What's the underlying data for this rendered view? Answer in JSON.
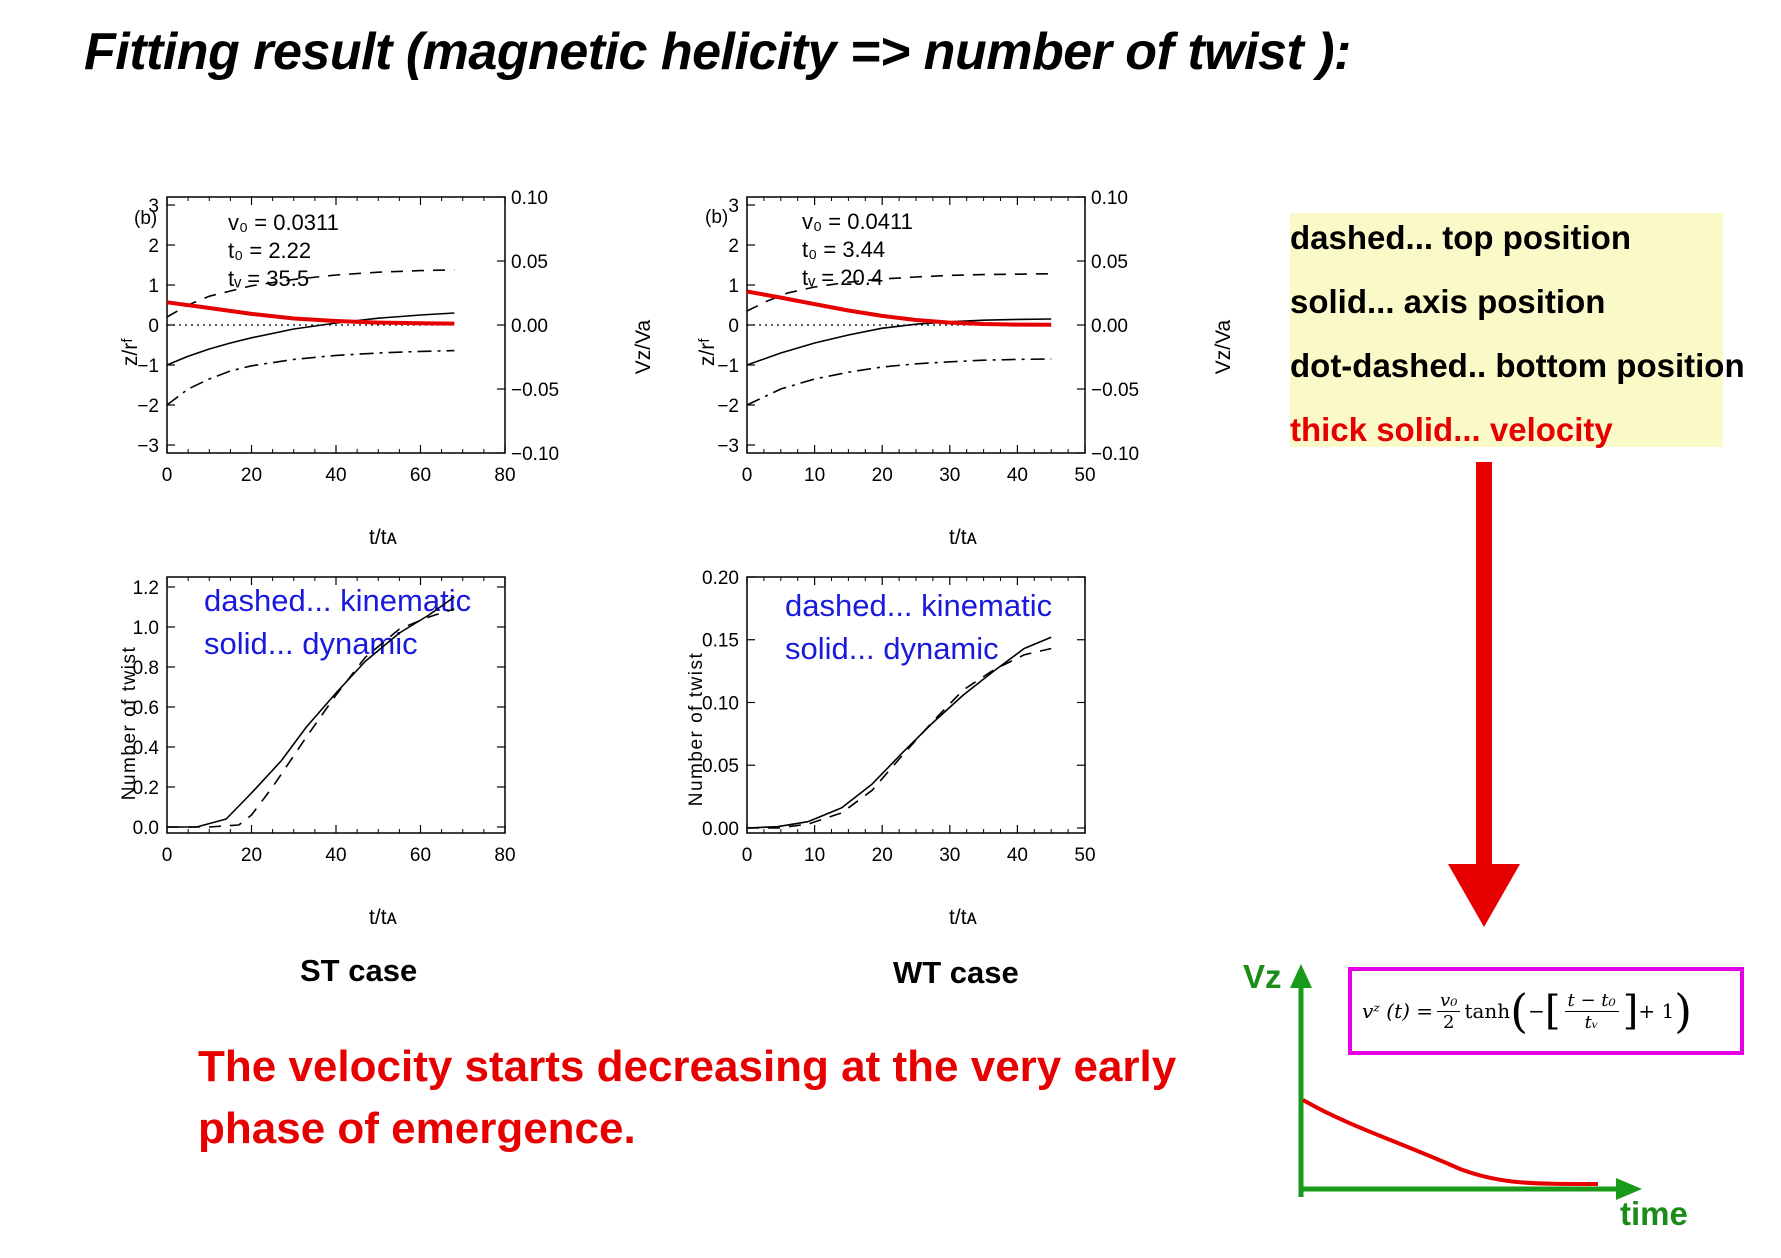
{
  "title": "Fitting result (magnetic helicity => number of twist ):",
  "colors": {
    "velocity": "#e60000",
    "legend_bg": "#fafac8",
    "arrow": "#e60000",
    "sketch_axis": "#1a8c1a",
    "formula_border": "#e600e6",
    "note_text": "#1a1adc"
  },
  "panels": {
    "st_top": {
      "panel_label": "(b)",
      "params": [
        "v₀ = 0.0311",
        "t₀ = 2.22",
        "tᵥ = 35.5"
      ],
      "xlabel": "t/tᴀ",
      "ylabel": "z/rᶠ",
      "y2label": "Vz/Va"
    },
    "wt_top": {
      "panel_label": "(b)",
      "params": [
        "v₀ = 0.0411",
        "t₀ = 3.44",
        "tᵥ = 20.4"
      ],
      "xlabel": "t/tᴀ",
      "ylabel": "z/rᶠ",
      "y2label": "Vz/Va"
    },
    "st_bottom": {
      "notes": [
        "dashed... kinematic",
        "solid... dynamic"
      ],
      "xlabel": "t/tᴀ",
      "ylabel": "Number of twist"
    },
    "wt_bottom": {
      "notes": [
        "dashed... kinematic",
        "solid... dynamic"
      ],
      "xlabel": "t/tᴀ",
      "ylabel": "Number of twist"
    }
  },
  "legend": {
    "dashed": "dashed... top position",
    "solid": "solid... axis position",
    "dotdashed": "dot-dashed.. bottom position",
    "thick": "thick solid... velocity"
  },
  "case_labels": {
    "st": "ST case",
    "wt": "WT case"
  },
  "conclusion": [
    "The velocity starts decreasing at the very early",
    "phase of emergence."
  ],
  "sketch": {
    "y_label": "Vz",
    "x_label": "time"
  },
  "formula": {
    "lhs": "vᶻ (t) =",
    "frac1_num": "v₀",
    "frac1_den": "2",
    "func": "tanh",
    "frac2_num": "t − t₀",
    "frac2_den": "tᵥ",
    "tail": "+ 1"
  },
  "chart_data": [
    {
      "type": "line",
      "name": "ST case - positions and velocity",
      "xlabel": "t/tᴀ",
      "ylabel": "z/rᶠ",
      "y2label": "Vz/Va",
      "xlim": [
        0,
        80
      ],
      "ylim": [
        -3.2,
        3.2
      ],
      "y2lim": [
        -0.1,
        0.1
      ],
      "xticks": [
        0,
        20,
        40,
        60,
        80
      ],
      "yticks": [
        -3,
        -2,
        -1,
        0,
        1,
        2,
        3
      ],
      "y2ticks": [
        "−0.10",
        "−0.05",
        "0.00",
        "0.05",
        "0.10"
      ],
      "grid": false,
      "zero_line": "dotted",
      "series": [
        {
          "style": "dashed",
          "x": [
            0,
            5,
            10,
            15,
            20,
            30,
            40,
            50,
            60,
            68
          ],
          "y": [
            0.2,
            0.5,
            0.72,
            0.85,
            0.98,
            1.14,
            1.25,
            1.32,
            1.36,
            1.38
          ]
        },
        {
          "style": "solid",
          "x": [
            0,
            5,
            10,
            15,
            20,
            30,
            40,
            50,
            60,
            68
          ],
          "y": [
            -1.0,
            -0.78,
            -0.6,
            -0.45,
            -0.32,
            -0.1,
            0.05,
            0.17,
            0.25,
            0.3
          ]
        },
        {
          "style": "dotdashed",
          "x": [
            0,
            5,
            10,
            15,
            20,
            30,
            40,
            50,
            60,
            68
          ],
          "y": [
            -2.0,
            -1.6,
            -1.35,
            -1.15,
            -1.02,
            -0.86,
            -0.76,
            -0.7,
            -0.66,
            -0.64
          ]
        },
        {
          "style": "thick",
          "axis": "y2",
          "x": [
            0,
            10,
            20,
            30,
            40,
            50,
            60,
            68
          ],
          "y": [
            0.0177,
            0.0133,
            0.0087,
            0.0051,
            0.0031,
            0.0019,
            0.0013,
            0.0011
          ]
        }
      ]
    },
    {
      "type": "line",
      "name": "WT case - positions and velocity",
      "xlabel": "t/tᴀ",
      "ylabel": "z/rᶠ",
      "y2label": "Vz/Va",
      "xlim": [
        0,
        50
      ],
      "ylim": [
        -3.2,
        3.2
      ],
      "y2lim": [
        -0.1,
        0.1
      ],
      "xticks": [
        0,
        10,
        20,
        30,
        40,
        50
      ],
      "yticks": [
        -3,
        -2,
        -1,
        0,
        1,
        2,
        3
      ],
      "y2ticks": [
        "−0.10",
        "−0.05",
        "0.00",
        "0.05",
        "0.10"
      ],
      "grid": false,
      "zero_line": "dotted",
      "series": [
        {
          "style": "dashed",
          "x": [
            0,
            3,
            6,
            10,
            15,
            20,
            25,
            30,
            35,
            40,
            45
          ],
          "y": [
            0.35,
            0.6,
            0.8,
            0.95,
            1.07,
            1.15,
            1.2,
            1.24,
            1.26,
            1.27,
            1.28
          ]
        },
        {
          "style": "solid",
          "x": [
            0,
            5,
            10,
            15,
            20,
            25,
            30,
            35,
            40,
            45
          ],
          "y": [
            -1.0,
            -0.7,
            -0.45,
            -0.25,
            -0.08,
            0.02,
            0.08,
            0.12,
            0.14,
            0.15
          ]
        },
        {
          "style": "dotdashed",
          "x": [
            0,
            5,
            10,
            15,
            20,
            25,
            30,
            35,
            40,
            45
          ],
          "y": [
            -2.0,
            -1.6,
            -1.35,
            -1.18,
            -1.05,
            -0.97,
            -0.92,
            -0.88,
            -0.86,
            -0.85
          ]
        },
        {
          "style": "thick",
          "axis": "y2",
          "x": [
            0,
            5,
            10,
            15,
            20,
            25,
            30,
            35,
            40,
            45
          ],
          "y": [
            0.0262,
            0.0214,
            0.0163,
            0.0113,
            0.0071,
            0.0039,
            0.0019,
            0.0008,
            0.0003,
            0.0002
          ]
        }
      ]
    },
    {
      "type": "line",
      "name": "ST case - number of twist",
      "xlabel": "t/tᴀ",
      "ylabel": "Number of twist",
      "xlim": [
        0,
        80
      ],
      "ylim": [
        -0.03,
        1.25
      ],
      "xticks": [
        0,
        20,
        40,
        60,
        80
      ],
      "yticks": [
        "0.0",
        "0.2",
        "0.4",
        "0.6",
        "0.8",
        "1.0",
        "1.2"
      ],
      "grid": false,
      "series": [
        {
          "style": "solid",
          "x": [
            0,
            7,
            14,
            20,
            27,
            33,
            40,
            47,
            55,
            62,
            68
          ],
          "y": [
            0.0,
            0.0,
            0.04,
            0.17,
            0.33,
            0.5,
            0.67,
            0.83,
            0.97,
            1.06,
            1.15
          ]
        },
        {
          "style": "dashed",
          "x": [
            0,
            10,
            17,
            20,
            25,
            33,
            40,
            47,
            55,
            62,
            68
          ],
          "y": [
            0.0,
            0.0,
            0.01,
            0.06,
            0.2,
            0.45,
            0.66,
            0.85,
            0.99,
            1.05,
            1.09
          ]
        }
      ]
    },
    {
      "type": "line",
      "name": "WT case - number of twist",
      "xlabel": "t/tᴀ",
      "ylabel": "Number of twist",
      "xlim": [
        0,
        50
      ],
      "ylim": [
        -0.004,
        0.2
      ],
      "xticks": [
        0,
        10,
        20,
        30,
        40,
        50
      ],
      "yticks": [
        "0.00",
        "0.05",
        "0.10",
        "0.15",
        "0.20"
      ],
      "grid": false,
      "series": [
        {
          "style": "solid",
          "x": [
            0,
            4.5,
            9,
            14,
            18.5,
            23,
            27.5,
            32,
            36.5,
            41,
            45
          ],
          "y": [
            0.0,
            0.001,
            0.005,
            0.016,
            0.035,
            0.06,
            0.084,
            0.106,
            0.125,
            0.143,
            0.152
          ]
        },
        {
          "style": "dashed",
          "x": [
            0,
            4.5,
            9,
            14,
            18.5,
            23,
            27.5,
            32,
            36.5,
            41,
            45
          ],
          "y": [
            0.0,
            0.0,
            0.003,
            0.012,
            0.03,
            0.058,
            0.085,
            0.11,
            0.126,
            0.138,
            0.143
          ]
        }
      ]
    }
  ]
}
